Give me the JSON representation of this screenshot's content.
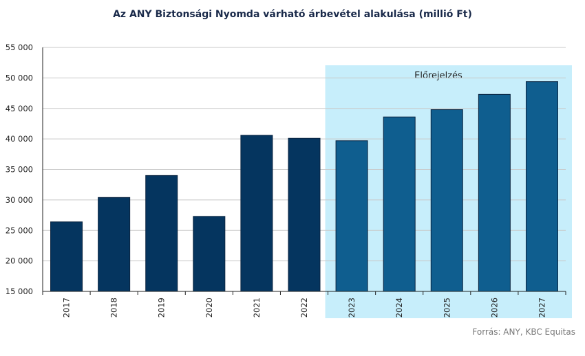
{
  "chart_data": {
    "type": "bar",
    "title": "Az ANY Biztonsági Nyomda várható árbevétel  alakulása (millió Ft)",
    "categories": [
      "2017",
      "2018",
      "2019",
      "2020",
      "2021",
      "2022",
      "2023",
      "2024",
      "2025",
      "2026",
      "2027"
    ],
    "values": [
      26400,
      30400,
      34000,
      27300,
      40600,
      40100,
      39700,
      43600,
      44800,
      47300,
      49400
    ],
    "forecast_from_index": 6,
    "forecast_label": "Előrejelzés",
    "ylim": [
      15000,
      55000
    ],
    "yticks": [
      15000,
      20000,
      25000,
      30000,
      35000,
      40000,
      45000,
      50000,
      55000
    ],
    "ytick_labels": [
      "15 000",
      "20 000",
      "25 000",
      "30 000",
      "35 000",
      "40 000",
      "45 000",
      "50 000",
      "55 000"
    ],
    "grid": true,
    "legend": "none",
    "source": "Forrás: ANY, KBC Equitas",
    "colors": {
      "actual": "#05355f",
      "forecast": "#0f5e8f",
      "forecast_band": "#c7eefb",
      "bar_outline": "#0a2440"
    }
  }
}
